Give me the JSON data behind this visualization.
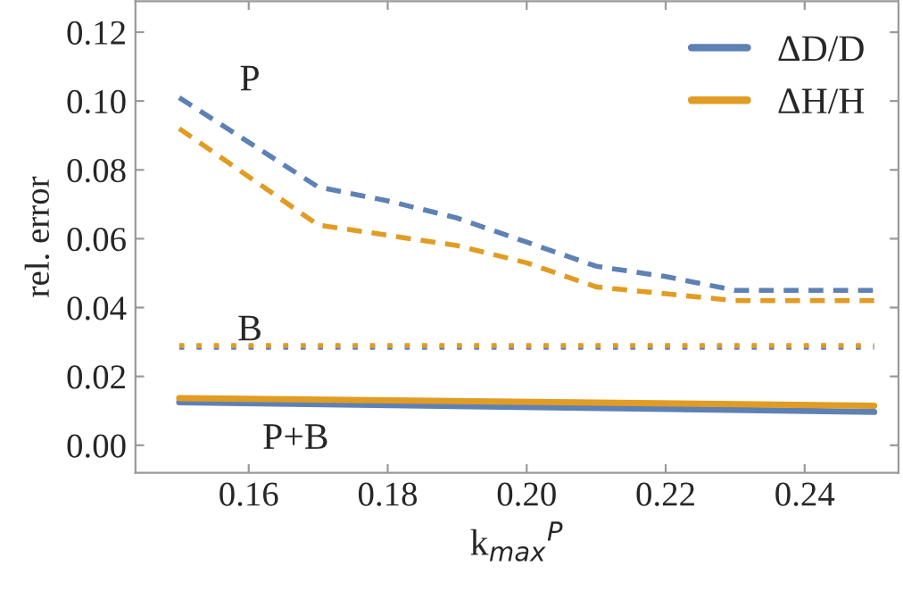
{
  "chart_data": {
    "type": "line",
    "xlabel": "k$_{max}$$^{P}$",
    "ylabel": "rel. error",
    "xlim": [
      0.1437,
      0.2535
    ],
    "ylim": [
      -0.008,
      0.129
    ],
    "xticks": [
      {
        "value": 0.16,
        "label": "0.16"
      },
      {
        "value": 0.18,
        "label": "0.18"
      },
      {
        "value": 0.2,
        "label": "0.20"
      },
      {
        "value": 0.22,
        "label": "0.22"
      },
      {
        "value": 0.24,
        "label": "0.24"
      }
    ],
    "yticks": [
      {
        "value": 0,
        "label": "0.00"
      },
      {
        "value": 0.02,
        "label": "0.02"
      },
      {
        "value": 0.04,
        "label": "0.04"
      },
      {
        "value": 0.06,
        "label": "0.06"
      },
      {
        "value": 0.08,
        "label": "0.08"
      },
      {
        "value": 0.1,
        "label": "0.10"
      },
      {
        "value": 0.12,
        "label": "0.12"
      }
    ],
    "grid": false,
    "legend": "top right",
    "series": [
      {
        "color": "#5e81b5",
        "line_style": "dashed",
        "x": [
          0.15,
          0.17,
          0.18,
          0.19,
          0.2,
          0.21,
          0.22,
          0.23,
          0.25
        ],
        "values": [
          0.101,
          0.075,
          0.071,
          0.066,
          0.059,
          0.052,
          0.049,
          0.045,
          0.045
        ]
      },
      {
        "color": "#e19c24",
        "line_style": "dashed",
        "x": [
          0.15,
          0.17,
          0.18,
          0.19,
          0.2,
          0.21,
          0.22,
          0.23,
          0.25
        ],
        "values": [
          0.092,
          0.064,
          0.061,
          0.058,
          0.053,
          0.046,
          0.044,
          0.042,
          0.042
        ]
      },
      {
        "color": "#5e81b5",
        "line_style": "dotted",
        "x": [
          0.15,
          0.25
        ],
        "values": [
          0.0285,
          0.0285
        ]
      },
      {
        "color": "#e19c24",
        "line_style": "dotted",
        "x": [
          0.15,
          0.25
        ],
        "values": [
          0.029,
          0.029
        ]
      },
      {
        "name": "ΔD/D",
        "color": "#5e81b5",
        "line_style": "solid",
        "x": [
          0.15,
          0.25
        ],
        "values": [
          0.0125,
          0.0097
        ]
      },
      {
        "name": "ΔH/H",
        "color": "#e19c24",
        "line_style": "solid",
        "x": [
          0.15,
          0.25
        ],
        "values": [
          0.0137,
          0.0115
        ]
      }
    ],
    "annotations": [
      "P",
      "B",
      "P+B"
    ]
  }
}
